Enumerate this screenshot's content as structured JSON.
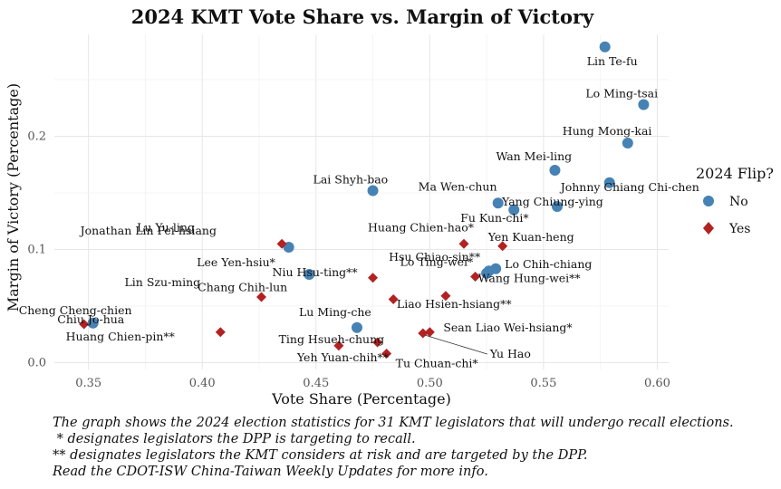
{
  "chart_data": {
    "type": "scatter",
    "title": "2024 KMT Vote Share vs. Margin of Victory",
    "xlabel": "Vote Share (Percentage)",
    "ylabel": "Margin of Victory (Percentage)",
    "xlim": [
      0.335,
      0.605
    ],
    "ylim": [
      -0.006,
      0.29
    ],
    "x_ticks": [
      0.35,
      0.4,
      0.45,
      0.5,
      0.55,
      0.6
    ],
    "x_tick_labels": [
      "0.35",
      "0.40",
      "0.45",
      "0.50",
      "0.55",
      "0.60"
    ],
    "y_ticks": [
      0.0,
      0.1,
      0.2
    ],
    "y_tick_labels": [
      "0.0",
      "0.1",
      "0.2"
    ],
    "grid": true,
    "legend": {
      "title": "2024 Flip?",
      "position": "right",
      "entries": [
        {
          "label": "No",
          "marker": "circle",
          "color": "#4682b4"
        },
        {
          "label": "Yes",
          "marker": "diamond",
          "color": "#b22222"
        }
      ]
    },
    "points": [
      {
        "label": "Lin Te-fu",
        "x": 0.577,
        "y": 0.279,
        "flip": "No"
      },
      {
        "label": "Lo Ming-tsai",
        "x": 0.594,
        "y": 0.228,
        "flip": "No"
      },
      {
        "label": "Hung Mong-kai",
        "x": 0.587,
        "y": 0.194,
        "flip": "No"
      },
      {
        "label": "Wan Mei-ling",
        "x": 0.555,
        "y": 0.17,
        "flip": "No"
      },
      {
        "label": "Johnny Chiang Chi-chen",
        "x": 0.579,
        "y": 0.159,
        "flip": "No"
      },
      {
        "label": "Lai Shyh-bao",
        "x": 0.475,
        "y": 0.152,
        "flip": "No"
      },
      {
        "label": "Ma Wen-chun",
        "x": 0.53,
        "y": 0.141,
        "flip": "No"
      },
      {
        "label": "Yang Chiung-ying",
        "x": 0.556,
        "y": 0.138,
        "flip": "No"
      },
      {
        "label": "Fu Kun-chi*",
        "x": 0.537,
        "y": 0.135,
        "flip": "No"
      },
      {
        "label": "Jonathan Lin Pei-hsiang",
        "x": 0.438,
        "y": 0.102,
        "flip": "No"
      },
      {
        "label": "Lee Yen-hsiu*",
        "x": 0.447,
        "y": 0.078,
        "flip": "No"
      },
      {
        "label": "Hsu Chiao-sin**",
        "x": 0.525,
        "y": 0.079,
        "flip": "No"
      },
      {
        "label": "Lo Chih-chiang",
        "x": 0.529,
        "y": 0.083,
        "flip": "No"
      },
      {
        "label": "Wang Hung-wei**",
        "x": 0.526,
        "y": 0.081,
        "flip": "No"
      },
      {
        "label": "Lu Ming-che",
        "x": 0.468,
        "y": 0.031,
        "flip": "No"
      },
      {
        "label": "Cheng Cheng-chien",
        "x": 0.352,
        "y": 0.035,
        "flip": "No"
      },
      {
        "label": "Lu Yu-ling",
        "x": 0.435,
        "y": 0.105,
        "flip": "Yes"
      },
      {
        "label": "Huang Chien-hao*",
        "x": 0.515,
        "y": 0.105,
        "flip": "Yes"
      },
      {
        "label": "Yen Kuan-heng",
        "x": 0.532,
        "y": 0.103,
        "flip": "Yes"
      },
      {
        "label": "Lin Szu-ming",
        "x": 0.426,
        "y": 0.058,
        "flip": "Yes"
      },
      {
        "label": "Niu Hsu-ting**",
        "x": 0.475,
        "y": 0.075,
        "flip": "Yes"
      },
      {
        "label": "Lo Ting-wei*",
        "x": 0.52,
        "y": 0.076,
        "flip": "Yes"
      },
      {
        "label": "Liao Hsien-hsiang**",
        "x": 0.507,
        "y": 0.059,
        "flip": "Yes"
      },
      {
        "label": "Chang Chih-lun",
        "x": 0.484,
        "y": 0.056,
        "flip": "Yes"
      },
      {
        "label": "Huang Chien-pin**",
        "x": 0.348,
        "y": 0.034,
        "flip": "Yes"
      },
      {
        "label": "Chiu Jo-hua",
        "x": 0.408,
        "y": 0.027,
        "flip": "Yes"
      },
      {
        "label": "Ting Hsueh-chung",
        "x": 0.477,
        "y": 0.018,
        "flip": "Yes"
      },
      {
        "label": "Sean Liao Wei-hsiang*",
        "x": 0.5,
        "y": 0.027,
        "flip": "Yes"
      },
      {
        "label": "Yu Hao",
        "x": 0.497,
        "y": 0.026,
        "flip": "Yes"
      },
      {
        "label": "Yeh Yuan-chih**",
        "x": 0.46,
        "y": 0.015,
        "flip": "Yes"
      },
      {
        "label": "Tu Chuan-chi*",
        "x": 0.481,
        "y": 0.008,
        "flip": "Yes"
      }
    ]
  },
  "caption": {
    "lines": [
      "The graph shows the 2024 election statistics for 31 KMT legislators that will undergo recall elections.",
      " * designates legislators the DPP is targeting to recall.",
      "** designates legislators the KMT considers at risk and are targeted by the DPP.",
      "Read the CDOT-ISW China-Taiwan Weekly Updates for more info."
    ]
  }
}
